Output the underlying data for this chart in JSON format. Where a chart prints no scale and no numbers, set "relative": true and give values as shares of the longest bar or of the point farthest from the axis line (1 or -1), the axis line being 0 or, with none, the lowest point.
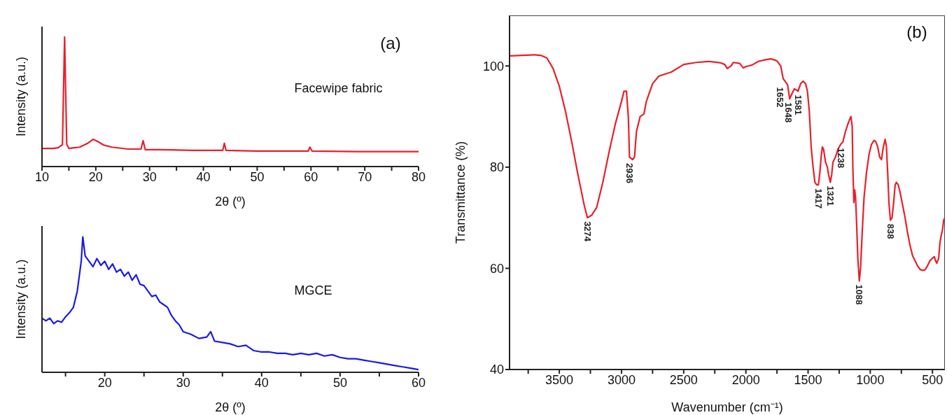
{
  "chart_data": [
    {
      "type": "line",
      "relative": true,
      "xlabel": "2θ (º)",
      "ylabel": "Intensity (a.u.)",
      "xlim": [
        10,
        80
      ],
      "xticks": [
        10,
        {
          "value": 15,
          "label": null
        },
        20,
        {
          "value": 25,
          "label": null
        },
        30,
        {
          "value": 35,
          "label": null
        },
        40,
        {
          "value": 45,
          "label": null
        },
        50,
        {
          "value": 55,
          "label": null
        },
        60,
        {
          "value": 65,
          "label": null
        },
        70,
        {
          "value": 75,
          "label": null
        },
        80
      ],
      "annotations": [
        "(a)"
      ],
      "series": [
        {
          "name": "Facewipe fabric",
          "color": "#e8202a",
          "x": [
            10,
            12,
            13,
            13.8,
            14.2,
            14.6,
            15,
            16,
            17,
            18.5,
            19.5,
            20.5,
            21.5,
            23,
            26,
            28.4,
            28.8,
            29.2,
            32,
            38,
            43.6,
            43.9,
            44.2,
            50,
            59.5,
            59.8,
            60.2,
            70,
            80
          ],
          "values": [
            0.14,
            0.14,
            0.145,
            0.17,
            1,
            0.17,
            0.14,
            0.145,
            0.15,
            0.18,
            0.21,
            0.19,
            0.165,
            0.15,
            0.135,
            0.135,
            0.2,
            0.13,
            0.13,
            0.125,
            0.125,
            0.18,
            0.125,
            0.12,
            0.12,
            0.15,
            0.12,
            0.115,
            0.115
          ]
        }
      ]
    },
    {
      "type": "line",
      "relative": true,
      "xlabel": "2θ (º)",
      "ylabel": "Intensity (a.u.)",
      "xlim": [
        12,
        60
      ],
      "xticks": [
        {
          "value": 15,
          "label": null
        },
        20,
        {
          "value": 25,
          "label": null
        },
        30,
        {
          "value": 35,
          "label": null
        },
        40,
        {
          "value": 45,
          "label": null
        },
        50,
        {
          "value": 55,
          "label": null
        },
        60
      ],
      "series": [
        {
          "name": "MGCE",
          "color": "#1a1ae6",
          "x": [
            12,
            12.5,
            13,
            13.5,
            14,
            14.5,
            15,
            15.5,
            16,
            16.5,
            17,
            17.2,
            17.5,
            18,
            18.5,
            19,
            19.5,
            20,
            20.5,
            21,
            21.5,
            22,
            22.5,
            23,
            23.5,
            24,
            24.5,
            25,
            25.5,
            26,
            26.5,
            27,
            27.5,
            28,
            28.5,
            29,
            29.5,
            30,
            31,
            32,
            33,
            33.5,
            34,
            35,
            36,
            37,
            38,
            39,
            40,
            41,
            42,
            43,
            44,
            45,
            46,
            47,
            48,
            49,
            50,
            51,
            52,
            53,
            54,
            55,
            56,
            57,
            58,
            59,
            60
          ],
          "values": [
            0.4,
            0.38,
            0.4,
            0.36,
            0.38,
            0.37,
            0.41,
            0.44,
            0.48,
            0.6,
            0.82,
            1,
            0.86,
            0.82,
            0.78,
            0.84,
            0.79,
            0.82,
            0.76,
            0.8,
            0.74,
            0.76,
            0.71,
            0.74,
            0.68,
            0.72,
            0.65,
            0.64,
            0.6,
            0.56,
            0.57,
            0.52,
            0.5,
            0.48,
            0.42,
            0.38,
            0.35,
            0.3,
            0.28,
            0.25,
            0.26,
            0.3,
            0.23,
            0.22,
            0.21,
            0.19,
            0.2,
            0.16,
            0.15,
            0.15,
            0.14,
            0.14,
            0.13,
            0.14,
            0.13,
            0.14,
            0.12,
            0.13,
            0.11,
            0.1,
            0.1,
            0.09,
            0.08,
            0.07,
            0.06,
            0.05,
            0.04,
            0.03,
            0.02
          ]
        }
      ]
    },
    {
      "type": "line",
      "xlabel": "Wavenumber (cm⁻¹)",
      "ylabel": "Transmittance (%)",
      "xlim": [
        3900,
        400
      ],
      "ylim": [
        40,
        110
      ],
      "yticks": [
        40,
        60,
        80,
        100
      ],
      "xticks": [
        {
          "value": 3750,
          "label": null
        },
        3500,
        {
          "value": 3250,
          "label": null
        },
        3000,
        {
          "value": 2750,
          "label": null
        },
        2500,
        {
          "value": 2250,
          "label": null
        },
        2000,
        {
          "value": 1750,
          "label": null
        },
        1500,
        {
          "value": 1250,
          "label": null
        },
        1000,
        {
          "value": 750,
          "label": null
        },
        500
      ],
      "annotations": [
        "(b)",
        {
          "text": "3274",
          "x": 3274,
          "y": 70
        },
        {
          "text": "2936",
          "x": 2936,
          "y": 81.5
        },
        {
          "text": "1652",
          "x": 1652,
          "y": 96.5
        },
        {
          "text": "1648",
          "x": 1648,
          "y": 93.5
        },
        {
          "text": "1581",
          "x": 1581,
          "y": 95
        },
        {
          "text": "1417",
          "x": 1417,
          "y": 76.5
        },
        {
          "text": "1321",
          "x": 1321,
          "y": 77
        },
        {
          "text": "1238",
          "x": 1238,
          "y": 84.5
        },
        {
          "text": "1088",
          "x": 1088,
          "y": 57.5
        },
        {
          "text": "838",
          "x": 838,
          "y": 69.5
        }
      ],
      "series": [
        {
          "color": "#e8202a",
          "x": [
            3900,
            3800,
            3700,
            3650,
            3600,
            3550,
            3500,
            3450,
            3400,
            3350,
            3300,
            3274,
            3240,
            3200,
            3150,
            3100,
            3050,
            3000,
            2980,
            2960,
            2945,
            2936,
            2910,
            2895,
            2880,
            2850,
            2820,
            2800,
            2750,
            2700,
            2600,
            2500,
            2400,
            2300,
            2200,
            2170,
            2150,
            2120,
            2100,
            2050,
            2020,
            2000,
            1980,
            1950,
            1900,
            1850,
            1800,
            1770,
            1750,
            1720,
            1700,
            1680,
            1665,
            1648,
            1630,
            1610,
            1590,
            1581,
            1560,
            1540,
            1520,
            1505,
            1490,
            1475,
            1460,
            1445,
            1430,
            1417,
            1405,
            1395,
            1385,
            1375,
            1360,
            1345,
            1335,
            1321,
            1310,
            1300,
            1280,
            1260,
            1238,
            1220,
            1200,
            1180,
            1165,
            1155,
            1145,
            1140,
            1132,
            1125,
            1118,
            1110,
            1100,
            1088,
            1078,
            1065,
            1050,
            1030,
            1010,
            990,
            970,
            955,
            940,
            925,
            910,
            895,
            880,
            870,
            860,
            850,
            838,
            825,
            812,
            800,
            790,
            775,
            760,
            740,
            720,
            700,
            680,
            660,
            640,
            620,
            600,
            580,
            560,
            540,
            520,
            500,
            485,
            475,
            465,
            450,
            440,
            430,
            420,
            410,
            400
          ],
          "values": [
            102,
            102.1,
            102.2,
            102.1,
            101.6,
            99.5,
            96,
            91,
            85,
            78.5,
            72.5,
            70,
            70.5,
            72,
            77,
            83,
            88.5,
            93,
            95,
            95,
            90,
            82,
            81.5,
            82,
            87,
            90,
            90.5,
            93,
            96.5,
            98,
            98.8,
            100.3,
            100.7,
            100.9,
            100.6,
            100.3,
            99.5,
            100,
            100.7,
            100.5,
            99.6,
            99.9,
            100,
            100.2,
            100.9,
            101.2,
            101.4,
            101.2,
            101,
            100,
            97.5,
            96.8,
            96.3,
            93.5,
            94.5,
            95.5,
            95.2,
            95,
            96.5,
            97,
            96.5,
            95,
            91,
            84,
            80,
            77,
            76.5,
            76.5,
            79,
            82,
            84,
            83.5,
            81,
            80,
            78.5,
            77,
            78.5,
            81,
            82,
            83.5,
            84.5,
            85,
            87,
            88.5,
            89.5,
            90,
            88,
            80,
            73,
            75.5,
            74,
            69,
            62,
            57.5,
            60,
            67,
            74,
            79,
            82.5,
            84.5,
            85.3,
            85,
            84,
            82,
            81.5,
            84,
            85.5,
            84,
            79,
            73,
            69.5,
            70,
            73,
            76.5,
            77,
            76.5,
            75,
            72.5,
            70,
            67,
            64.5,
            62.5,
            61.5,
            60.5,
            59.8,
            59.6,
            59.7,
            60.5,
            61.5,
            62,
            62.3,
            61.5,
            61,
            62,
            65,
            66.5,
            67.5,
            69.5,
            70
          ]
        }
      ]
    }
  ]
}
